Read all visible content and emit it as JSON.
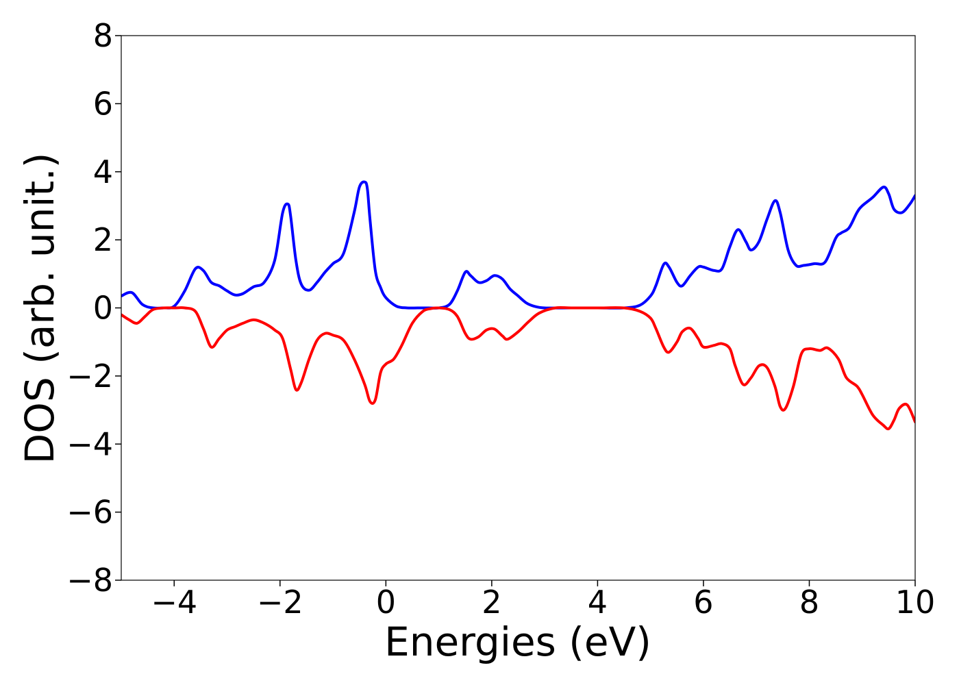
{
  "chart_data": {
    "type": "line",
    "title": "",
    "xlabel": "Energies (eV)",
    "ylabel": "DOS (arb. unit.)",
    "xlim": [
      -5,
      10
    ],
    "ylim": [
      -8,
      8
    ],
    "xticks": [
      -4,
      -2,
      0,
      2,
      4,
      6,
      8,
      10
    ],
    "xtick_labels": [
      "−4",
      "−2",
      "0",
      "2",
      "4",
      "6",
      "8",
      "10"
    ],
    "yticks": [
      -8,
      -6,
      -4,
      -2,
      0,
      2,
      4,
      6,
      8
    ],
    "ytick_labels": [
      "−8",
      "−6",
      "−4",
      "−2",
      "0",
      "2",
      "4",
      "6",
      "8"
    ],
    "grid": false,
    "legend": false,
    "series": [
      {
        "color": "#0000ff",
        "x": [
          -5.0,
          -4.8,
          -4.6,
          -4.4,
          -4.2,
          -4.0,
          -3.8,
          -3.6,
          -3.45,
          -3.3,
          -3.15,
          -3.0,
          -2.85,
          -2.7,
          -2.5,
          -2.3,
          -2.1,
          -1.95,
          -1.85,
          -1.8,
          -1.7,
          -1.6,
          -1.45,
          -1.3,
          -1.15,
          -1.0,
          -0.8,
          -0.6,
          -0.5,
          -0.4,
          -0.35,
          -0.3,
          -0.2,
          -0.1,
          0.0,
          0.2,
          0.4,
          0.6,
          0.8,
          1.0,
          1.2,
          1.35,
          1.5,
          1.6,
          1.75,
          1.9,
          2.05,
          2.2,
          2.35,
          2.5,
          2.65,
          2.8,
          3.0,
          3.5,
          4.0,
          4.5,
          4.8,
          5.0,
          5.1,
          5.25,
          5.35,
          5.5,
          5.6,
          5.75,
          5.9,
          6.0,
          6.2,
          6.35,
          6.5,
          6.65,
          6.8,
          6.9,
          7.05,
          7.2,
          7.35,
          7.45,
          7.6,
          7.75,
          7.9,
          8.1,
          8.3,
          8.5,
          8.6,
          8.75,
          8.9,
          9.0,
          9.2,
          9.4,
          9.5,
          9.6,
          9.75,
          9.9,
          10.0
        ],
        "y": [
          0.35,
          0.45,
          0.1,
          0.0,
          0.0,
          0.05,
          0.5,
          1.15,
          1.1,
          0.75,
          0.65,
          0.5,
          0.38,
          0.42,
          0.62,
          0.75,
          1.4,
          2.8,
          3.05,
          2.7,
          1.4,
          0.7,
          0.52,
          0.75,
          1.05,
          1.3,
          1.6,
          2.8,
          3.55,
          3.7,
          3.5,
          2.6,
          1.1,
          0.6,
          0.3,
          0.05,
          0.0,
          0.0,
          0.0,
          0.0,
          0.1,
          0.5,
          1.05,
          0.95,
          0.75,
          0.8,
          0.95,
          0.85,
          0.55,
          0.35,
          0.15,
          0.05,
          0.0,
          0.0,
          0.0,
          0.0,
          0.08,
          0.35,
          0.65,
          1.28,
          1.2,
          0.75,
          0.65,
          0.95,
          1.2,
          1.2,
          1.1,
          1.15,
          1.8,
          2.3,
          1.95,
          1.7,
          1.95,
          2.6,
          3.15,
          2.8,
          1.7,
          1.25,
          1.25,
          1.3,
          1.35,
          2.05,
          2.2,
          2.35,
          2.8,
          3.0,
          3.25,
          3.55,
          3.35,
          2.9,
          2.8,
          3.05,
          3.3
        ]
      },
      {
        "color": "#ff0000",
        "x": [
          -5.0,
          -4.85,
          -4.7,
          -4.55,
          -4.4,
          -4.2,
          -4.0,
          -3.8,
          -3.6,
          -3.45,
          -3.3,
          -3.15,
          -3.0,
          -2.85,
          -2.7,
          -2.5,
          -2.3,
          -2.1,
          -1.95,
          -1.8,
          -1.7,
          -1.6,
          -1.45,
          -1.3,
          -1.15,
          -1.0,
          -0.8,
          -0.6,
          -0.4,
          -0.3,
          -0.2,
          -0.1,
          0.0,
          0.15,
          0.3,
          0.5,
          0.7,
          0.85,
          1.0,
          1.2,
          1.35,
          1.5,
          1.6,
          1.75,
          1.9,
          2.05,
          2.2,
          2.3,
          2.5,
          2.7,
          2.9,
          3.2,
          3.5,
          4.0,
          4.5,
          4.8,
          5.0,
          5.1,
          5.25,
          5.35,
          5.5,
          5.6,
          5.75,
          5.9,
          6.0,
          6.2,
          6.35,
          6.5,
          6.6,
          6.75,
          6.9,
          7.05,
          7.2,
          7.35,
          7.45,
          7.55,
          7.7,
          7.85,
          8.0,
          8.2,
          8.35,
          8.55,
          8.7,
          8.9,
          9.0,
          9.2,
          9.4,
          9.5,
          9.6,
          9.7,
          9.85,
          10.0
        ],
        "y": [
          -0.2,
          -0.35,
          -0.45,
          -0.25,
          -0.05,
          0.0,
          0.0,
          0.0,
          -0.1,
          -0.6,
          -1.15,
          -0.9,
          -0.65,
          -0.55,
          -0.45,
          -0.35,
          -0.45,
          -0.65,
          -0.9,
          -1.8,
          -2.4,
          -2.2,
          -1.5,
          -0.95,
          -0.75,
          -0.8,
          -0.95,
          -1.5,
          -2.25,
          -2.75,
          -2.7,
          -1.9,
          -1.65,
          -1.5,
          -1.1,
          -0.45,
          -0.1,
          -0.02,
          0.0,
          -0.05,
          -0.25,
          -0.75,
          -0.92,
          -0.85,
          -0.65,
          -0.62,
          -0.82,
          -0.92,
          -0.7,
          -0.4,
          -0.15,
          0.0,
          0.0,
          0.0,
          0.0,
          -0.1,
          -0.3,
          -0.6,
          -1.15,
          -1.3,
          -1.0,
          -0.7,
          -0.6,
          -0.9,
          -1.15,
          -1.1,
          -1.05,
          -1.2,
          -1.7,
          -2.25,
          -2.05,
          -1.7,
          -1.75,
          -2.3,
          -2.9,
          -2.95,
          -2.3,
          -1.35,
          -1.2,
          -1.25,
          -1.18,
          -1.5,
          -2.05,
          -2.3,
          -2.55,
          -3.15,
          -3.45,
          -3.55,
          -3.3,
          -2.95,
          -2.85,
          -3.35
        ]
      }
    ]
  }
}
